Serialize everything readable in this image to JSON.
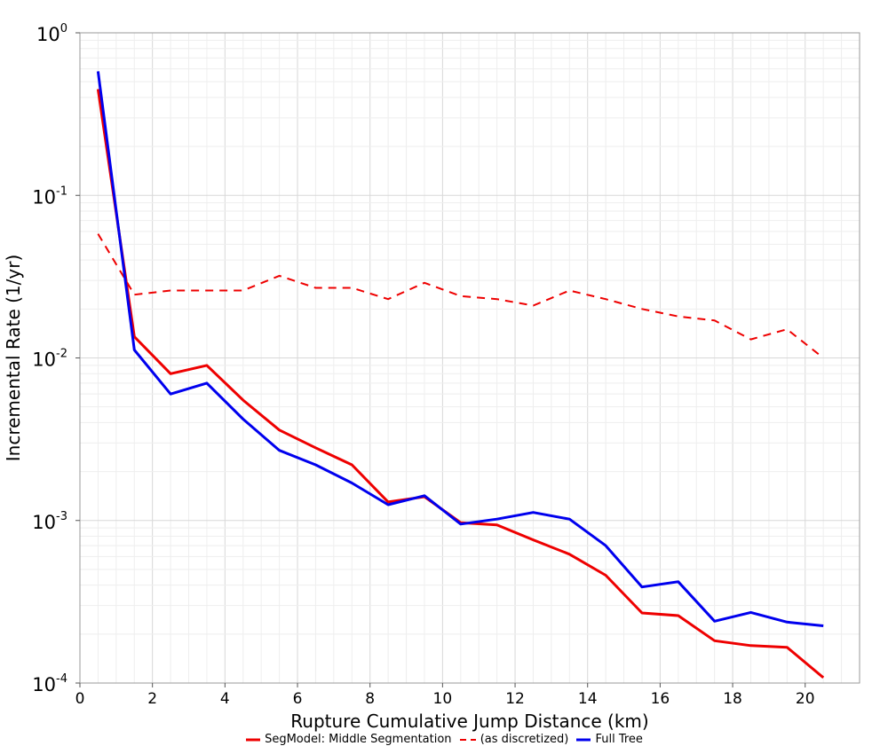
{
  "chart_data": {
    "type": "line",
    "title": "",
    "xlabel": "Rupture Cumulative Jump Distance (km)",
    "ylabel": "Incremental Rate (1/yr)",
    "xlim": [
      0,
      21.5
    ],
    "ylim": [
      0.0001,
      1
    ],
    "y_scale": "log",
    "x_ticks": [
      0,
      2,
      4,
      6,
      8,
      10,
      12,
      14,
      16,
      18,
      20
    ],
    "x_tick_labels": [
      "0",
      "2",
      "4",
      "6",
      "8",
      "10",
      "12",
      "14",
      "16",
      "18",
      "20"
    ],
    "y_ticks": [
      {
        "base": "10",
        "exp": "0",
        "value": 1
      },
      {
        "base": "10",
        "exp": "-1",
        "value": 0.1
      },
      {
        "base": "10",
        "exp": "-2",
        "value": 0.01
      },
      {
        "base": "10",
        "exp": "-3",
        "value": 0.001
      },
      {
        "base": "10",
        "exp": "-4",
        "value": 0.0001
      }
    ],
    "grid": true,
    "legend_position": "bottom",
    "x": [
      0.5,
      1.5,
      2.5,
      3.5,
      4.5,
      5.5,
      6.5,
      7.5,
      8.5,
      9.5,
      10.5,
      11.5,
      12.5,
      13.5,
      14.5,
      15.5,
      16.5,
      17.5,
      18.5,
      19.5,
      20.5
    ],
    "series": [
      {
        "name": "SegModel: Middle Segmentation",
        "color": "#ee0000",
        "style": "solid",
        "values": [
          0.45,
          0.0135,
          0.008,
          0.009,
          0.0055,
          0.0036,
          0.0028,
          0.0022,
          0.0013,
          0.0014,
          0.00097,
          0.00094,
          0.00076,
          0.00062,
          0.00046,
          0.00027,
          0.00026,
          0.000182,
          0.00017,
          0.000166,
          0.000108
        ]
      },
      {
        "name": "(as discretized)",
        "color": "#ee0000",
        "style": "dashed",
        "values": [
          0.058,
          0.0245,
          0.026,
          0.026,
          0.026,
          0.032,
          0.027,
          0.027,
          0.023,
          0.029,
          0.024,
          0.023,
          0.021,
          0.026,
          0.023,
          0.02,
          0.018,
          0.017,
          0.013,
          0.015,
          0.01
        ]
      },
      {
        "name": "Full Tree",
        "color": "#0000ee",
        "style": "solid",
        "values": [
          0.58,
          0.0112,
          0.006,
          0.007,
          0.0042,
          0.0027,
          0.0022,
          0.0017,
          0.00125,
          0.00142,
          0.00095,
          0.00102,
          0.00112,
          0.00102,
          0.0007,
          0.00039,
          0.00042,
          0.00024,
          0.000272,
          0.000237,
          0.000225
        ]
      }
    ]
  }
}
